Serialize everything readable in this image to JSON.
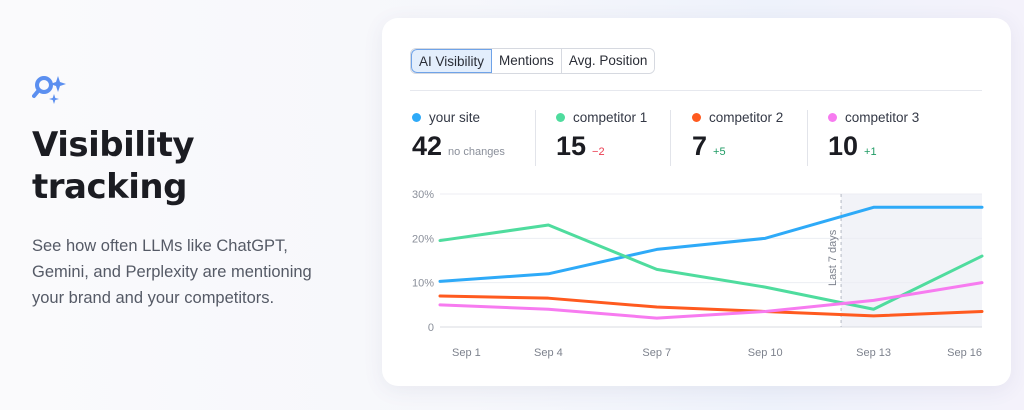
{
  "hero": {
    "icon": "search-sparkle-icon",
    "title": "Visibility tracking",
    "description": "See how often LLMs like ChatGPT, Gemini, and Perplexity are mentioning your brand and your competitors."
  },
  "tabs": [
    {
      "label": "AI Visibility",
      "active": true
    },
    {
      "label": "Mentions",
      "active": false
    },
    {
      "label": "Avg. Position",
      "active": false
    }
  ],
  "stats": [
    {
      "name": "your site",
      "value": "42",
      "change": "no changes",
      "color": "#2eaaf8",
      "change_color": "#8a8f9a"
    },
    {
      "name": "competitor 1",
      "value": "15",
      "change": "−2",
      "color": "#4fdc9e",
      "change_color": "#ea3b4f"
    },
    {
      "name": "competitor 2",
      "value": "7",
      "change": "+5",
      "color": "#ff5a1f",
      "change_color": "#1f9b64"
    },
    {
      "name": "competitor 3",
      "value": "10",
      "change": "+1",
      "color": "#f77bf0",
      "change_color": "#1f9b64"
    }
  ],
  "chart_data": {
    "type": "line",
    "categories": [
      "Sep 1",
      "Sep 4",
      "Sep 7",
      "Sep 10",
      "Sep 13",
      "Sep 16"
    ],
    "y_ticks": [
      "0",
      "10%",
      "20%",
      "30%"
    ],
    "ylim": [
      0,
      30
    ],
    "grid": true,
    "highlight": {
      "label": "Last 7 days",
      "from_index": 3.7,
      "to_index": 5
    },
    "series": [
      {
        "name": "your site",
        "color": "#2eaaf8",
        "values": [
          10.3,
          12,
          17.5,
          20,
          27,
          27
        ]
      },
      {
        "name": "competitor 1",
        "color": "#4fdc9e",
        "values": [
          19.5,
          23,
          13,
          9,
          4,
          16
        ]
      },
      {
        "name": "competitor 2",
        "color": "#ff5a1f",
        "values": [
          7,
          6.5,
          4.5,
          3.5,
          2.5,
          3.5
        ]
      },
      {
        "name": "competitor 3",
        "color": "#f77bf0",
        "values": [
          5,
          4,
          2,
          3.5,
          6,
          10
        ]
      }
    ]
  }
}
